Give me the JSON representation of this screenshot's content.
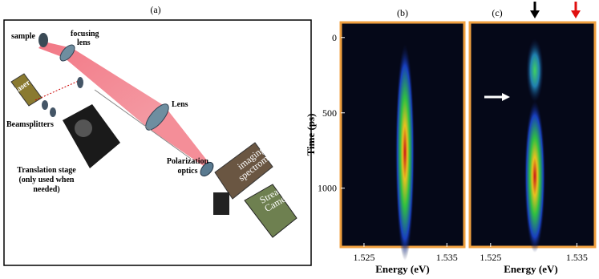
{
  "panel_a": {
    "label": "(a)",
    "sample": "sample",
    "focusing_lens": [
      "focusing",
      "lens"
    ],
    "laser": "laser",
    "lens": "Lens",
    "beamsplitters": "Beamsplitters",
    "translation_stage": [
      "Translation stage",
      "(only used when",
      "needed)"
    ],
    "polarization_optics": [
      "Polarization",
      "optics"
    ],
    "spectrometer": [
      "imaging",
      "spectrometer"
    ],
    "streak_camera": [
      "Streak",
      "Camera"
    ]
  },
  "panel_b": {
    "label": "(b)",
    "xlabel": "Energy (eV)",
    "ylabel": "Time (ps)",
    "xlim": [
      1.5222,
      1.5371
    ],
    "ylim": [
      -100,
      1390
    ],
    "xticks": [
      1.525,
      1.535
    ],
    "yticks": [
      0,
      500,
      1000
    ]
  },
  "panel_c": {
    "label": "(c)",
    "xlabel": "Energy (eV)",
    "xlim": [
      1.5226,
      1.5371
    ],
    "xticks": [
      1.525,
      1.535
    ]
  }
}
